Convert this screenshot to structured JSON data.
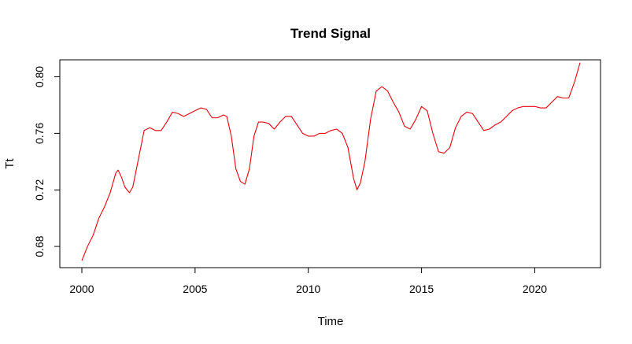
{
  "chart_data": {
    "type": "line",
    "title": "Trend Signal",
    "xlabel": "Time",
    "ylabel": "Tt",
    "xlim": [
      2000,
      2022
    ],
    "ylim": [
      0.665,
      0.812
    ],
    "xticks": [
      2000,
      2005,
      2010,
      2015,
      2020
    ],
    "yticks": [
      0.68,
      0.72,
      0.76,
      0.8
    ],
    "ytick_labels": [
      "0.68",
      "0.72",
      "0.76",
      "0.80"
    ],
    "grid": false,
    "colors": {
      "line": "#e8000b",
      "frame": "#000000"
    },
    "series": [
      {
        "x": [
          2000.0,
          2000.25,
          2000.5,
          2000.75,
          2001.0,
          2001.25,
          2001.5,
          2001.6,
          2001.75,
          2001.9,
          2002.0,
          2002.1,
          2002.25,
          2002.5,
          2002.75,
          2003.0,
          2003.25,
          2003.5,
          2003.75,
          2004.0,
          2004.25,
          2004.5,
          2004.75,
          2005.0,
          2005.25,
          2005.5,
          2005.75,
          2006.0,
          2006.25,
          2006.4,
          2006.6,
          2006.8,
          2007.0,
          2007.2,
          2007.4,
          2007.6,
          2007.8,
          2008.0,
          2008.25,
          2008.5,
          2008.75,
          2009.0,
          2009.25,
          2009.5,
          2009.75,
          2010.0,
          2010.25,
          2010.5,
          2010.75,
          2011.0,
          2011.25,
          2011.5,
          2011.75,
          2012.0,
          2012.15,
          2012.3,
          2012.5,
          2012.75,
          2013.0,
          2013.25,
          2013.5,
          2013.75,
          2014.0,
          2014.25,
          2014.5,
          2014.75,
          2015.0,
          2015.25,
          2015.5,
          2015.75,
          2016.0,
          2016.25,
          2016.5,
          2016.75,
          2017.0,
          2017.25,
          2017.5,
          2017.75,
          2018.0,
          2018.25,
          2018.5,
          2018.75,
          2019.0,
          2019.25,
          2019.5,
          2019.75,
          2020.0,
          2020.25,
          2020.5,
          2020.75,
          2021.0,
          2021.25,
          2021.5,
          2021.75,
          2022.0
        ],
        "values": [
          0.67,
          0.68,
          0.688,
          0.7,
          0.708,
          0.718,
          0.732,
          0.734,
          0.729,
          0.722,
          0.72,
          0.718,
          0.722,
          0.742,
          0.762,
          0.764,
          0.762,
          0.762,
          0.768,
          0.775,
          0.774,
          0.772,
          0.774,
          0.776,
          0.778,
          0.777,
          0.771,
          0.771,
          0.773,
          0.772,
          0.758,
          0.735,
          0.726,
          0.724,
          0.735,
          0.758,
          0.768,
          0.768,
          0.767,
          0.763,
          0.768,
          0.772,
          0.772,
          0.766,
          0.76,
          0.758,
          0.758,
          0.76,
          0.76,
          0.762,
          0.763,
          0.76,
          0.75,
          0.728,
          0.72,
          0.725,
          0.74,
          0.77,
          0.79,
          0.793,
          0.79,
          0.782,
          0.775,
          0.765,
          0.763,
          0.77,
          0.779,
          0.776,
          0.76,
          0.747,
          0.746,
          0.75,
          0.764,
          0.772,
          0.775,
          0.774,
          0.768,
          0.762,
          0.763,
          0.766,
          0.768,
          0.772,
          0.776,
          0.778,
          0.779,
          0.779,
          0.779,
          0.778,
          0.778,
          0.782,
          0.786,
          0.785,
          0.785,
          0.796,
          0.81
        ]
      }
    ]
  }
}
